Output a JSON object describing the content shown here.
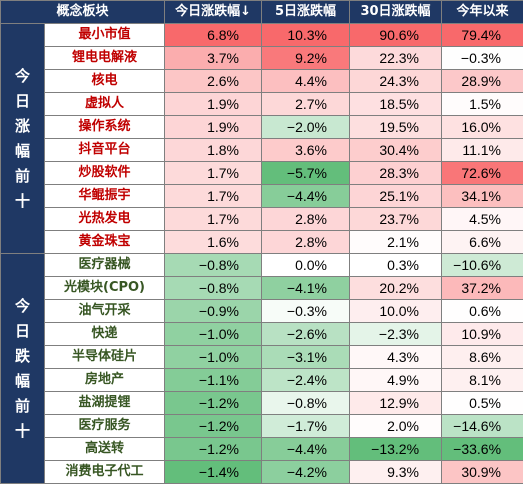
{
  "chart_data": {
    "type": "table",
    "columns": [
      "概念板块",
      "今日涨跌幅↓",
      "5日涨跌幅",
      "30日涨跌幅",
      "今年以来"
    ],
    "groups": [
      {
        "label": "今日涨幅前十",
        "chars": [
          "今",
          "日",
          "涨",
          "幅",
          "前",
          "十"
        ],
        "rows": [
          {
            "name": "最小市值",
            "today": "6.8%",
            "d5": "10.3%",
            "d30": "90.6%",
            "ytd": "79.4%"
          },
          {
            "name": "锂电电解液",
            "today": "3.7%",
            "d5": "9.2%",
            "d30": "22.3%",
            "ytd": "−0.3%"
          },
          {
            "name": "核电",
            "today": "2.6%",
            "d5": "4.4%",
            "d30": "24.3%",
            "ytd": "28.9%"
          },
          {
            "name": "虚拟人",
            "today": "1.9%",
            "d5": "2.7%",
            "d30": "18.5%",
            "ytd": "1.5%"
          },
          {
            "name": "操作系统",
            "today": "1.9%",
            "d5": "−2.0%",
            "d30": "19.5%",
            "ytd": "16.0%"
          },
          {
            "name": "抖音平台",
            "today": "1.8%",
            "d5": "3.6%",
            "d30": "30.4%",
            "ytd": "11.1%"
          },
          {
            "name": "炒股软件",
            "today": "1.7%",
            "d5": "−5.7%",
            "d30": "28.3%",
            "ytd": "72.6%"
          },
          {
            "name": "华鲲振宇",
            "today": "1.7%",
            "d5": "−4.4%",
            "d30": "25.1%",
            "ytd": "34.1%"
          },
          {
            "name": "光热发电",
            "today": "1.7%",
            "d5": "2.8%",
            "d30": "23.7%",
            "ytd": "4.5%"
          },
          {
            "name": "黄金珠宝",
            "today": "1.6%",
            "d5": "2.8%",
            "d30": "2.1%",
            "ytd": "6.6%"
          }
        ]
      },
      {
        "label": "今日跌幅前十",
        "chars": [
          "今",
          "日",
          "跌",
          "幅",
          "前",
          "十"
        ],
        "rows": [
          {
            "name": "医疗器械",
            "today": "−0.8%",
            "d5": "0.0%",
            "d30": "0.3%",
            "ytd": "−10.6%"
          },
          {
            "name": "光模块(CPO)",
            "today": "−0.8%",
            "d5": "−4.1%",
            "d30": "20.2%",
            "ytd": "37.2%"
          },
          {
            "name": "油气开采",
            "today": "−0.9%",
            "d5": "−0.3%",
            "d30": "10.0%",
            "ytd": "0.6%"
          },
          {
            "name": "快递",
            "today": "−1.0%",
            "d5": "−2.6%",
            "d30": "−2.3%",
            "ytd": "10.9%"
          },
          {
            "name": "半导体硅片",
            "today": "−1.0%",
            "d5": "−3.1%",
            "d30": "4.3%",
            "ytd": "8.6%"
          },
          {
            "name": "房地产",
            "today": "−1.1%",
            "d5": "−2.4%",
            "d30": "4.9%",
            "ytd": "8.1%"
          },
          {
            "name": "盐湖提锂",
            "today": "−1.2%",
            "d5": "−0.8%",
            "d30": "12.9%",
            "ytd": "0.5%"
          },
          {
            "name": "医疗服务",
            "today": "−1.2%",
            "d5": "−1.7%",
            "d30": "2.0%",
            "ytd": "−14.6%"
          },
          {
            "name": "高送转",
            "today": "−1.2%",
            "d5": "−4.4%",
            "d30": "−13.2%",
            "ytd": "−33.6%"
          },
          {
            "name": "消费电子代工",
            "today": "−1.4%",
            "d5": "−4.2%",
            "d30": "9.3%",
            "ytd": "30.9%"
          }
        ]
      }
    ],
    "colors": {
      "header_bg": "#1f3864",
      "header_text": "#ffffff",
      "positive_strong": "#f8696b",
      "neutral": "#ffffff",
      "negative_strong": "#63be7b",
      "name_up": "#c00000",
      "name_down": "#375623"
    }
  }
}
